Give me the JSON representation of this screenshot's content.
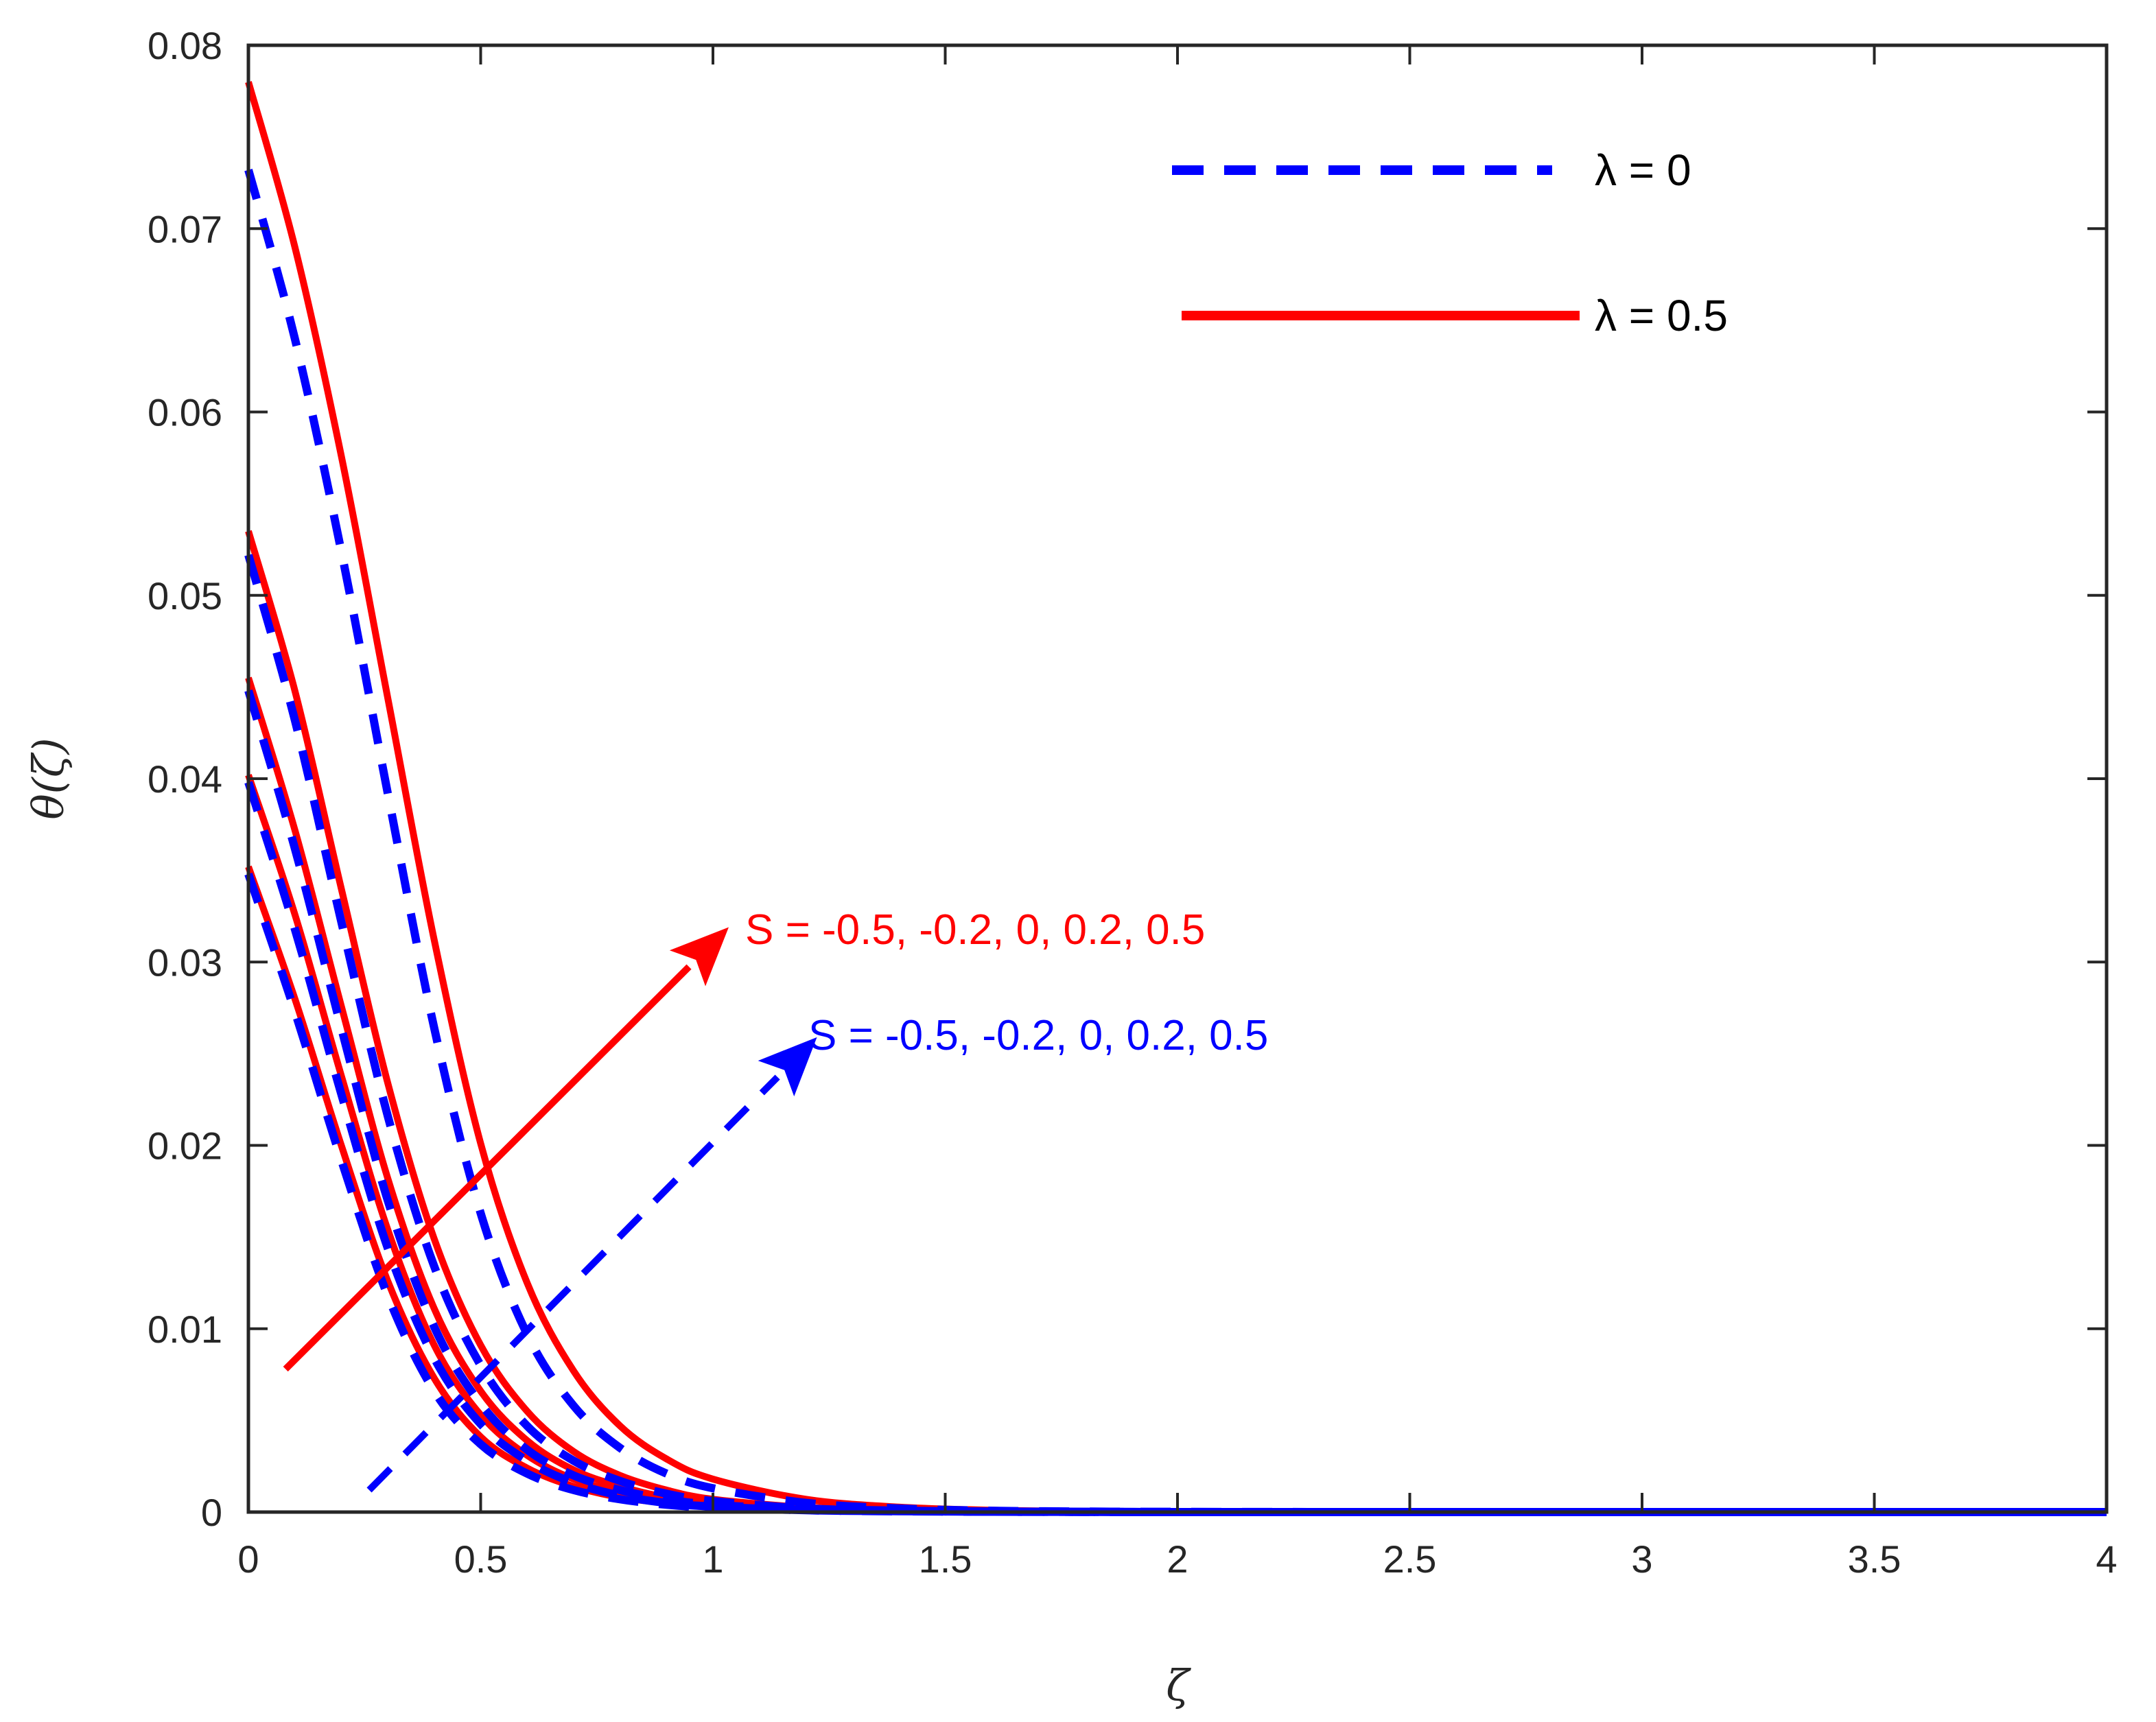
{
  "chart_data": {
    "type": "line",
    "title": "",
    "xlabel": "ζ",
    "ylabel": "θ(ζ)",
    "xlim": [
      0,
      4
    ],
    "ylim": [
      0,
      0.08
    ],
    "xticks": [
      0,
      0.5,
      1,
      1.5,
      2,
      2.5,
      3,
      3.5,
      4
    ],
    "xtick_labels": [
      "0",
      "0.5",
      "1",
      "1.5",
      "2",
      "2.5",
      "3",
      "3.5",
      "4"
    ],
    "yticks": [
      0,
      0.01,
      0.02,
      0.03,
      0.04,
      0.05,
      0.06,
      0.07,
      0.08
    ],
    "ytick_labels": [
      "0",
      "0.01",
      "0.02",
      "0.03",
      "0.04",
      "0.05",
      "0.06",
      "0.07",
      "0.08"
    ],
    "grid": false,
    "legend_position": "top-right",
    "legend": [
      {
        "label": "λ = 0",
        "color": "#0000ff",
        "style": "dashed"
      },
      {
        "label": "λ = 0.5",
        "color": "#ff0000",
        "style": "solid"
      }
    ],
    "x": [
      0,
      0.1,
      0.2,
      0.3,
      0.4,
      0.5,
      0.6,
      0.7,
      0.8,
      0.9,
      1.0,
      1.2,
      1.4,
      1.6,
      1.8,
      2.0,
      2.5,
      3.0,
      3.5,
      4.0
    ],
    "series": [
      {
        "group": "λ = 0",
        "S": "-0.5",
        "color": "#0000ff",
        "style": "dashed",
        "values": [
          0.0348,
          0.0273,
          0.0192,
          0.0118,
          0.0066,
          0.0037,
          0.0021,
          0.0012,
          0.0007,
          0.0004,
          0.00025,
          0.0001,
          4e-05,
          2e-05,
          1e-05,
          0,
          0,
          0,
          0,
          0
        ]
      },
      {
        "group": "λ = 0",
        "S": "-0.2",
        "color": "#0000ff",
        "style": "dashed",
        "values": [
          0.0398,
          0.0318,
          0.0228,
          0.0144,
          0.0084,
          0.0048,
          0.0028,
          0.0016,
          0.0009,
          0.0005,
          0.0003,
          0.0001,
          5e-05,
          2e-05,
          1e-05,
          0,
          0,
          0,
          0,
          0
        ]
      },
      {
        "group": "λ = 0",
        "S": "0",
        "color": "#0000ff",
        "style": "dashed",
        "values": [
          0.0448,
          0.0362,
          0.0264,
          0.017,
          0.0101,
          0.0059,
          0.0034,
          0.002,
          0.0012,
          0.0007,
          0.0004,
          0.00015,
          6e-05,
          2e-05,
          1e-05,
          0,
          0,
          0,
          0,
          0
        ]
      },
      {
        "group": "λ = 0",
        "S": "0.2",
        "color": "#0000ff",
        "style": "dashed",
        "values": [
          0.0522,
          0.0432,
          0.0322,
          0.0216,
          0.0134,
          0.008,
          0.0047,
          0.0028,
          0.0017,
          0.001,
          0.0006,
          0.0002,
          8e-05,
          3e-05,
          1e-05,
          0,
          0,
          0,
          0,
          0
        ]
      },
      {
        "group": "λ = 0",
        "S": "0.5",
        "color": "#0000ff",
        "style": "dashed",
        "values": [
          0.0732,
          0.064,
          0.0524,
          0.0392,
          0.0264,
          0.0163,
          0.0097,
          0.0058,
          0.0035,
          0.0021,
          0.0013,
          0.0005,
          0.0002,
          7e-05,
          3e-05,
          1e-05,
          0,
          0,
          0,
          0
        ]
      },
      {
        "group": "λ = 0.5",
        "S": "-0.5",
        "color": "#ff0000",
        "style": "solid",
        "values": [
          0.0352,
          0.028,
          0.02,
          0.0126,
          0.0073,
          0.0041,
          0.0024,
          0.0014,
          0.0008,
          0.0005,
          0.0003,
          0.0001,
          4e-05,
          2e-05,
          1e-05,
          0,
          0,
          0,
          0,
          0
        ]
      },
      {
        "group": "λ = 0.5",
        "S": "-0.2",
        "color": "#ff0000",
        "style": "solid",
        "values": [
          0.0402,
          0.0326,
          0.0238,
          0.0154,
          0.0091,
          0.0053,
          0.0031,
          0.0018,
          0.0011,
          0.0006,
          0.0004,
          0.00014,
          5e-05,
          2e-05,
          1e-05,
          0,
          0,
          0,
          0,
          0
        ]
      },
      {
        "group": "λ = 0.5",
        "S": "0",
        "color": "#ff0000",
        "style": "solid",
        "values": [
          0.0455,
          0.0372,
          0.0276,
          0.0182,
          0.0111,
          0.0066,
          0.0039,
          0.0023,
          0.0014,
          0.0008,
          0.0005,
          0.00018,
          7e-05,
          3e-05,
          1e-05,
          0,
          0,
          0,
          0,
          0
        ]
      },
      {
        "group": "λ = 0.5",
        "S": "0.2",
        "color": "#ff0000",
        "style": "solid",
        "values": [
          0.0535,
          0.0448,
          0.034,
          0.0234,
          0.0149,
          0.0091,
          0.0055,
          0.0033,
          0.002,
          0.0012,
          0.0007,
          0.00026,
          0.0001,
          4e-05,
          1e-05,
          0,
          0,
          0,
          0,
          0
        ]
      },
      {
        "group": "λ = 0.5",
        "S": "0.5",
        "color": "#ff0000",
        "style": "solid",
        "values": [
          0.078,
          0.069,
          0.0576,
          0.0444,
          0.0312,
          0.0201,
          0.0125,
          0.0077,
          0.0047,
          0.0029,
          0.0018,
          0.0007,
          0.00027,
          0.0001,
          4e-05,
          1e-05,
          0,
          0,
          0,
          0
        ]
      }
    ],
    "annotations": [
      {
        "text": "S = -0.5, -0.2, 0, 0.2, 0.5",
        "color": "#ff0000",
        "arrow": {
          "from": [
            0.08,
            0.0078
          ],
          "to": [
            1.03,
            0.0318
          ],
          "style": "solid"
        }
      },
      {
        "text": "S = -0.5, -0.2, 0, 0.2, 0.5",
        "color": "#0000ff",
        "arrow": {
          "from": [
            0.26,
            0.0012
          ],
          "to": [
            1.22,
            0.0258
          ],
          "style": "dashed"
        }
      }
    ]
  }
}
